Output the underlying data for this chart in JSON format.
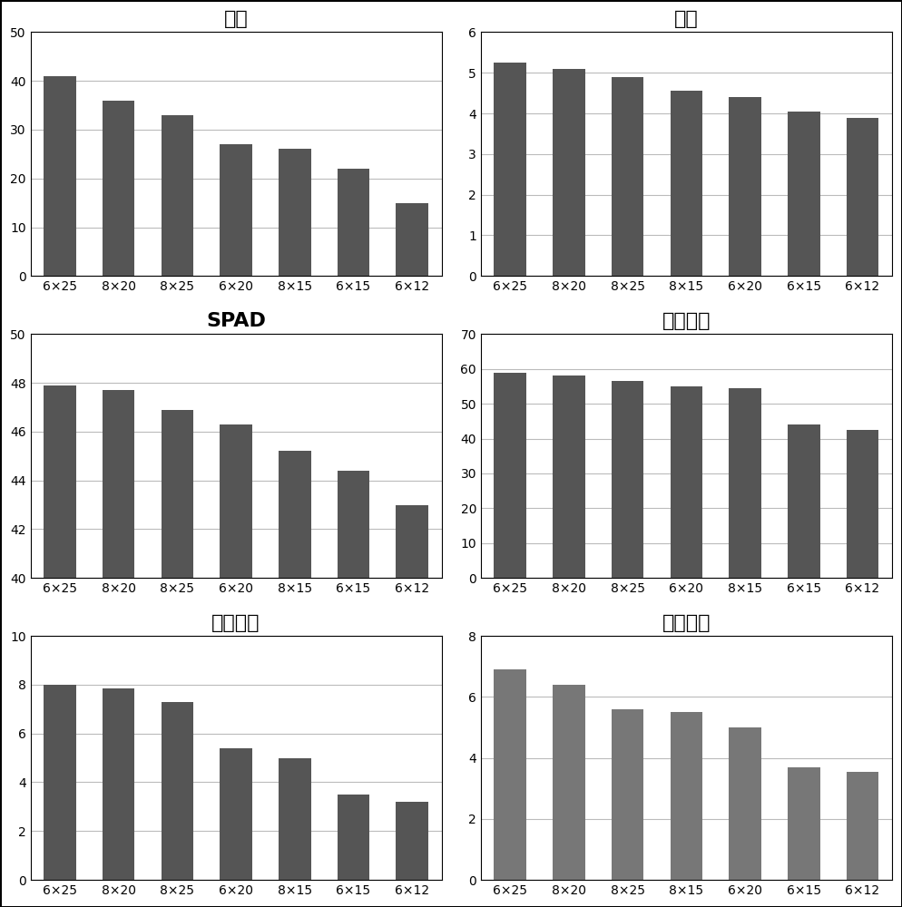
{
  "charts": [
    {
      "title": "苗高",
      "categories": [
        "6×25",
        "8×20",
        "8×25",
        "6×20",
        "8×15",
        "6×15",
        "6×12"
      ],
      "values": [
        41.0,
        36.0,
        33.0,
        27.0,
        26.0,
        22.0,
        15.0
      ],
      "ylim": [
        0,
        50
      ],
      "yticks": [
        0,
        10,
        20,
        30,
        40,
        50
      ],
      "bar_color": "#555555",
      "title_bold": false,
      "title_fontsize": 16
    },
    {
      "title": "地径",
      "categories": [
        "6×25",
        "8×20",
        "8×25",
        "8×15",
        "6×20",
        "6×15",
        "6×12"
      ],
      "values": [
        5.25,
        5.1,
        4.9,
        4.55,
        4.4,
        4.05,
        3.9
      ],
      "ylim": [
        0,
        6
      ],
      "yticks": [
        0,
        1,
        2,
        3,
        4,
        5,
        6
      ],
      "bar_color": "#555555",
      "title_bold": false,
      "title_fontsize": 16
    },
    {
      "title": "SPAD",
      "categories": [
        "6×25",
        "8×20",
        "8×25",
        "6×20",
        "8×15",
        "6×15",
        "6×12"
      ],
      "values": [
        47.9,
        47.7,
        46.9,
        46.3,
        45.2,
        44.4,
        43.0
      ],
      "ylim": [
        40,
        50
      ],
      "yticks": [
        40,
        42,
        44,
        46,
        48,
        50
      ],
      "bar_color": "#555555",
      "title_bold": true,
      "title_fontsize": 16
    },
    {
      "title": "单叶面积",
      "categories": [
        "6×25",
        "8×20",
        "8×25",
        "6×20",
        "8×15",
        "6×15",
        "6×12"
      ],
      "values": [
        59.0,
        58.0,
        56.5,
        55.0,
        54.5,
        44.0,
        42.5
      ],
      "ylim": [
        0,
        70
      ],
      "yticks": [
        0,
        10,
        20,
        30,
        40,
        50,
        60,
        70
      ],
      "bar_color": "#555555",
      "title_bold": false,
      "title_fontsize": 16
    },
    {
      "title": "地上干重",
      "categories": [
        "6×25",
        "8×20",
        "8×25",
        "6×20",
        "8×15",
        "6×15",
        "6×12"
      ],
      "values": [
        8.0,
        7.85,
        7.3,
        5.4,
        5.0,
        3.5,
        3.2
      ],
      "ylim": [
        0,
        10
      ],
      "yticks": [
        0,
        2,
        4,
        6,
        8,
        10
      ],
      "bar_color": "#555555",
      "title_bold": false,
      "title_fontsize": 16
    },
    {
      "title": "地下干重",
      "categories": [
        "6×25",
        "8×20",
        "8×25",
        "8×15",
        "6×20",
        "6×15",
        "6×12"
      ],
      "values": [
        6.9,
        6.4,
        5.6,
        5.5,
        5.0,
        3.7,
        3.55
      ],
      "ylim": [
        0,
        8
      ],
      "yticks": [
        0,
        2,
        4,
        6,
        8
      ],
      "bar_color": "#777777",
      "title_bold": false,
      "title_fontsize": 16
    }
  ],
  "figure_bg": "#ffffff",
  "axes_bg": "#ffffff",
  "grid_color": "#bbbbbb",
  "bar_width": 0.55,
  "tick_fontsize": 10,
  "xtick_fontsize": 10
}
